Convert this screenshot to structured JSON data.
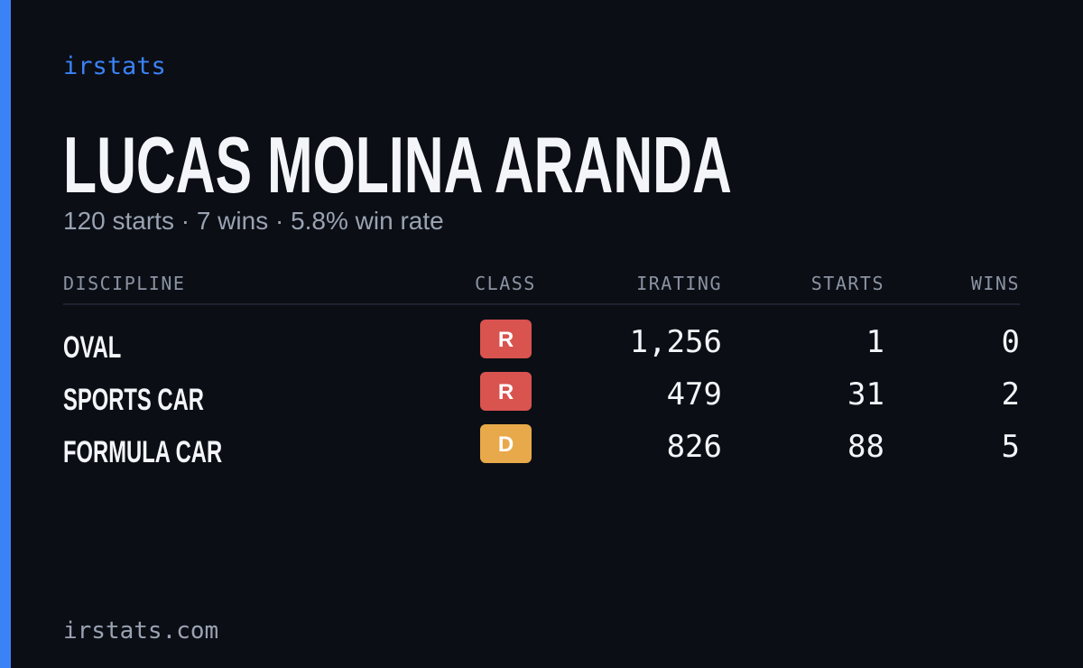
{
  "brand": "irstats",
  "name": "LUCAS MOLINA ARANDA",
  "summary": "120 starts · 7 wins · 5.8% win rate",
  "table": {
    "headers": [
      "DISCIPLINE",
      "CLASS",
      "IRATING",
      "STARTS",
      "WINS"
    ],
    "rows": [
      {
        "discipline": "OVAL",
        "class": "R",
        "class_color": "#d9534f",
        "irating": "1,256",
        "starts": "1",
        "wins": "0"
      },
      {
        "discipline": "SPORTS CAR",
        "class": "R",
        "class_color": "#d9534f",
        "irating": "479",
        "starts": "31",
        "wins": "2"
      },
      {
        "discipline": "FORMULA CAR",
        "class": "D",
        "class_color": "#e8a94a",
        "irating": "826",
        "starts": "88",
        "wins": "5"
      }
    ]
  },
  "footer": "irstats.com"
}
